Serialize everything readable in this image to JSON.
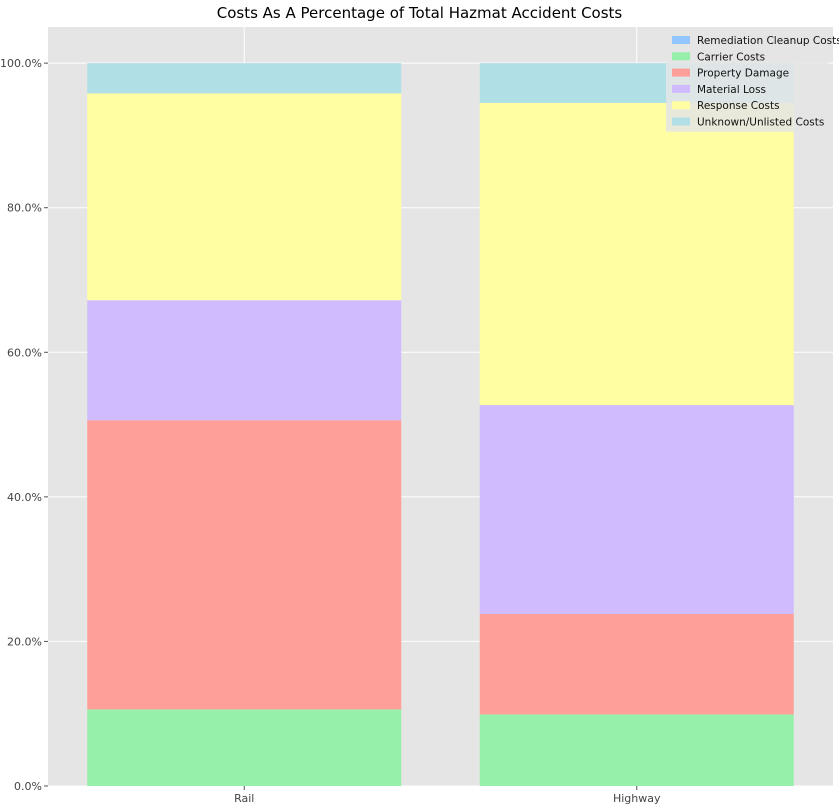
{
  "chart_data": {
    "type": "bar",
    "stacked": true,
    "title": "Costs As A Percentage of Total Hazmat Accident Costs",
    "xlabel": "",
    "ylabel": "",
    "categories": [
      "Rail",
      "Highway"
    ],
    "ylim": [
      0,
      1.05
    ],
    "yticks": [
      0,
      0.2,
      0.4,
      0.6,
      0.8,
      1.0
    ],
    "ytick_labels": [
      "0.0%",
      "20.0%",
      "40.0%",
      "60.0%",
      "80.0%",
      "100.0%"
    ],
    "grid": true,
    "legend_position": "top-right",
    "series": [
      {
        "name": "Remediation Cleanup Costs",
        "color": "#92c6ff",
        "values": [
          0.0,
          0.0
        ]
      },
      {
        "name": "Carrier Costs",
        "color": "#97f0aa",
        "values": [
          0.106,
          0.099
        ]
      },
      {
        "name": "Property Damage",
        "color": "#ff9f9a",
        "values": [
          0.4,
          0.139
        ]
      },
      {
        "name": "Material Loss",
        "color": "#d0bbff",
        "values": [
          0.166,
          0.289
        ]
      },
      {
        "name": "Response Costs",
        "color": "#fffea3",
        "values": [
          0.286,
          0.418
        ]
      },
      {
        "name": "Unknown/Unlisted Costs",
        "color": "#b0e0e6",
        "values": [
          0.042,
          0.055
        ]
      }
    ]
  }
}
